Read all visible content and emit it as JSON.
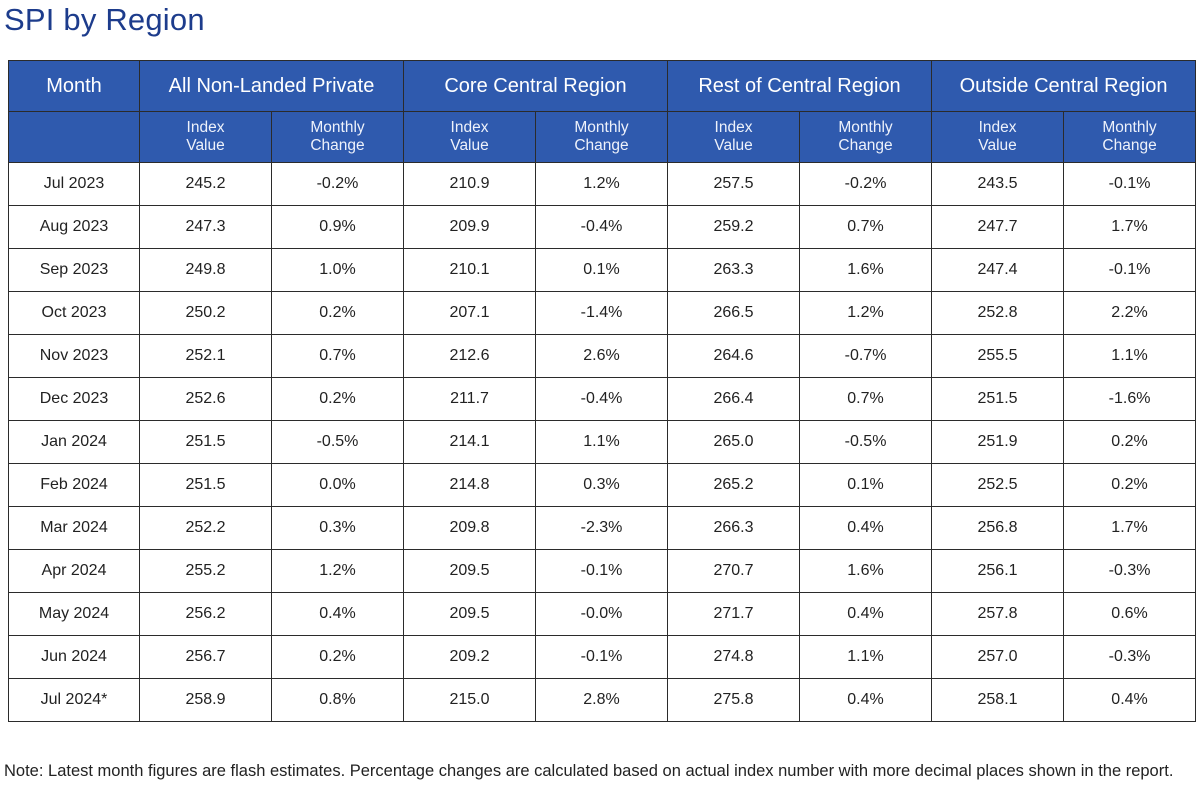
{
  "title": "SPI by Region",
  "header": {
    "month": "Month",
    "regions": [
      "All Non-Landed Private",
      "Core Central Region",
      "Rest of Central Region",
      "Outside Central Region"
    ],
    "sub_index": [
      "Index",
      "Value"
    ],
    "sub_change": [
      "Monthly",
      "Change"
    ]
  },
  "rows": [
    {
      "month": "Jul 2023",
      "cells": [
        "245.2",
        "-0.2%",
        "210.9",
        "1.2%",
        "257.5",
        "-0.2%",
        "243.5",
        "-0.1%"
      ]
    },
    {
      "month": "Aug 2023",
      "cells": [
        "247.3",
        "0.9%",
        "209.9",
        "-0.4%",
        "259.2",
        "0.7%",
        "247.7",
        "1.7%"
      ]
    },
    {
      "month": "Sep 2023",
      "cells": [
        "249.8",
        "1.0%",
        "210.1",
        "0.1%",
        "263.3",
        "1.6%",
        "247.4",
        "-0.1%"
      ]
    },
    {
      "month": "Oct 2023",
      "cells": [
        "250.2",
        "0.2%",
        "207.1",
        "-1.4%",
        "266.5",
        "1.2%",
        "252.8",
        "2.2%"
      ]
    },
    {
      "month": "Nov 2023",
      "cells": [
        "252.1",
        "0.7%",
        "212.6",
        "2.6%",
        "264.6",
        "-0.7%",
        "255.5",
        "1.1%"
      ]
    },
    {
      "month": "Dec 2023",
      "cells": [
        "252.6",
        "0.2%",
        "211.7",
        "-0.4%",
        "266.4",
        "0.7%",
        "251.5",
        "-1.6%"
      ]
    },
    {
      "month": "Jan 2024",
      "cells": [
        "251.5",
        "-0.5%",
        "214.1",
        "1.1%",
        "265.0",
        "-0.5%",
        "251.9",
        "0.2%"
      ]
    },
    {
      "month": "Feb 2024",
      "cells": [
        "251.5",
        "0.0%",
        "214.8",
        "0.3%",
        "265.2",
        "0.1%",
        "252.5",
        "0.2%"
      ]
    },
    {
      "month": "Mar 2024",
      "cells": [
        "252.2",
        "0.3%",
        "209.8",
        "-2.3%",
        "266.3",
        "0.4%",
        "256.8",
        "1.7%"
      ]
    },
    {
      "month": "Apr 2024",
      "cells": [
        "255.2",
        "1.2%",
        "209.5",
        "-0.1%",
        "270.7",
        "1.6%",
        "256.1",
        "-0.3%"
      ]
    },
    {
      "month": "May 2024",
      "cells": [
        "256.2",
        "0.4%",
        "209.5",
        "-0.0%",
        "271.7",
        "0.4%",
        "257.8",
        "0.6%"
      ]
    },
    {
      "month": "Jun 2024",
      "cells": [
        "256.7",
        "0.2%",
        "209.2",
        "-0.1%",
        "274.8",
        "1.1%",
        "257.0",
        "-0.3%"
      ]
    },
    {
      "month": "Jul 2024*",
      "cells": [
        "258.9",
        "0.8%",
        "215.0",
        "2.8%",
        "275.8",
        "0.4%",
        "258.1",
        "0.4%"
      ]
    }
  ],
  "note": "Note: Latest month figures are flash estimates. Percentage changes are calculated based on actual index number with more decimal places shown in the report.",
  "colors": {
    "header_bg": "#2f5aae",
    "title": "#1d3c8c"
  }
}
